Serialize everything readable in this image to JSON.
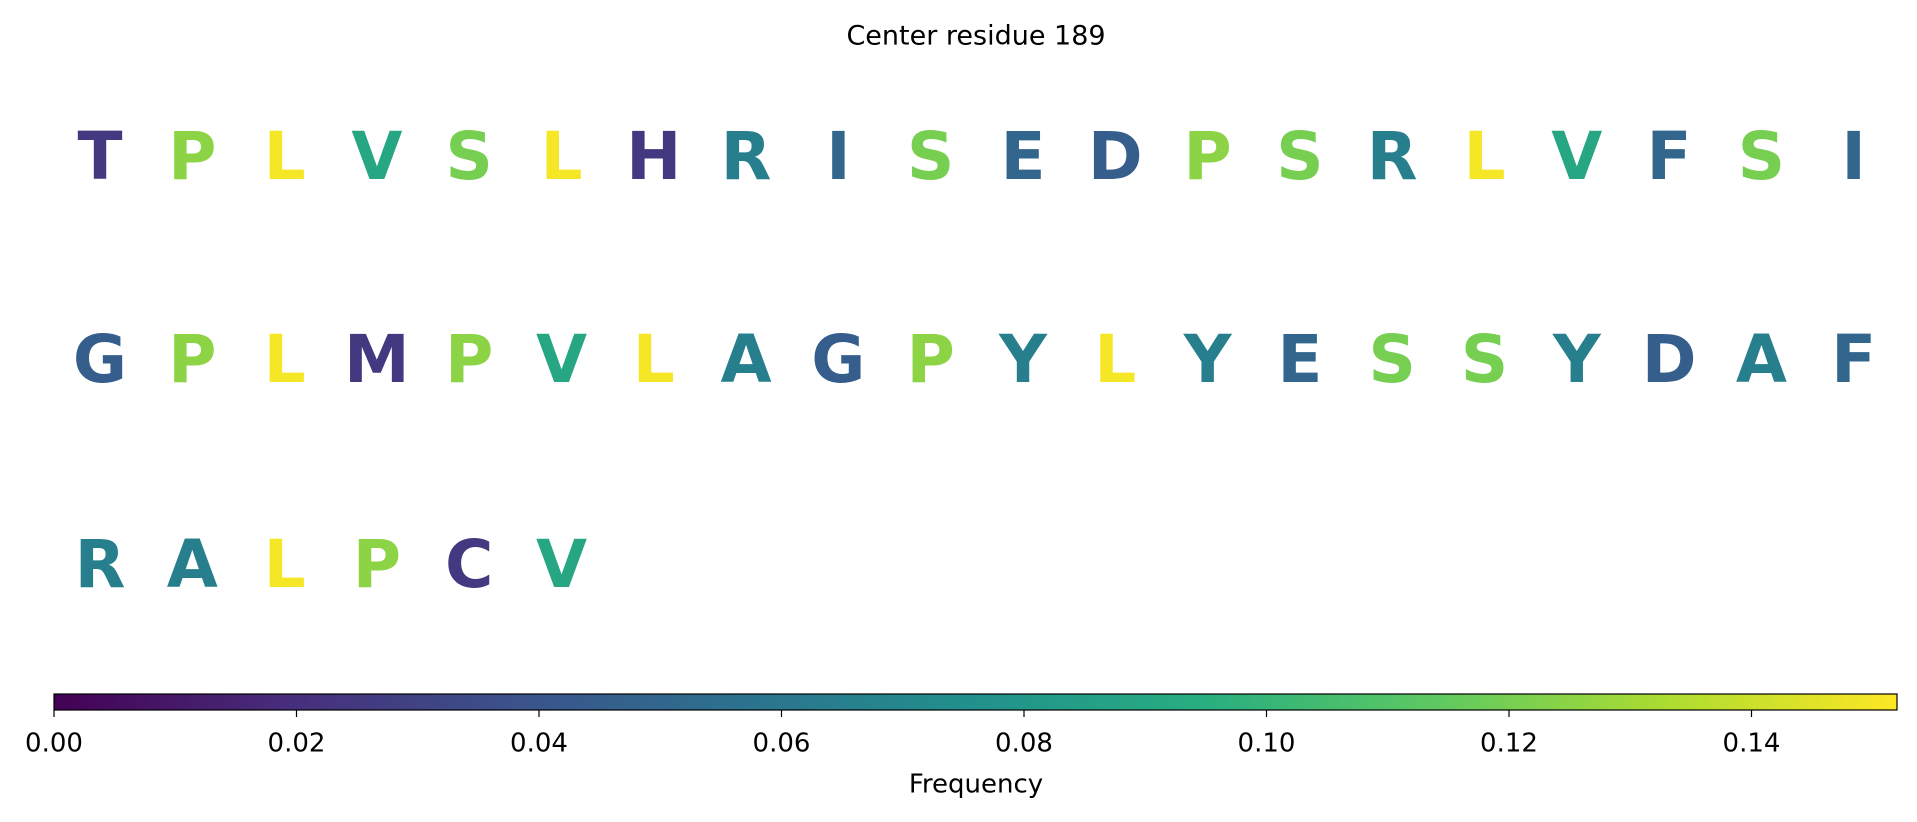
{
  "chart_data": {
    "type": "sequence-logo",
    "title": "Center residue 189",
    "residues": [
      "T",
      "P",
      "L",
      "V",
      "S",
      "L",
      "H",
      "R",
      "I",
      "S",
      "E",
      "D",
      "P",
      "S",
      "R",
      "L",
      "V",
      "F",
      "S",
      "I",
      "G",
      "P",
      "L",
      "M",
      "P",
      "V",
      "L",
      "A",
      "G",
      "P",
      "Y",
      "L",
      "Y",
      "E",
      "S",
      "S",
      "Y",
      "D",
      "A",
      "F",
      "R",
      "A",
      "L",
      "P",
      "C",
      "V"
    ],
    "values": [
      0.025,
      0.125,
      0.15,
      0.09,
      0.12,
      0.15,
      0.025,
      0.065,
      0.05,
      0.12,
      0.05,
      0.045,
      0.125,
      0.12,
      0.065,
      0.15,
      0.09,
      0.05,
      0.12,
      0.05,
      0.045,
      0.125,
      0.15,
      0.025,
      0.125,
      0.09,
      0.15,
      0.065,
      0.045,
      0.125,
      0.065,
      0.15,
      0.065,
      0.05,
      0.12,
      0.12,
      0.065,
      0.045,
      0.065,
      0.05,
      0.065,
      0.065,
      0.15,
      0.125,
      0.025,
      0.09
    ],
    "colormap": "viridis",
    "colorbar_label": "Frequency",
    "clim": [
      0,
      0.152
    ],
    "cticks": [
      {
        "value": 0,
        "label": "0.00"
      },
      {
        "value": 0.02,
        "label": "0.02"
      },
      {
        "value": 0.04,
        "label": "0.04"
      },
      {
        "value": 0.06,
        "label": "0.06"
      },
      {
        "value": 0.08,
        "label": "0.08"
      },
      {
        "value": 0.1,
        "label": "0.10"
      },
      {
        "value": 0.12,
        "label": "0.12"
      },
      {
        "value": 0.14,
        "label": "0.14"
      }
    ]
  }
}
